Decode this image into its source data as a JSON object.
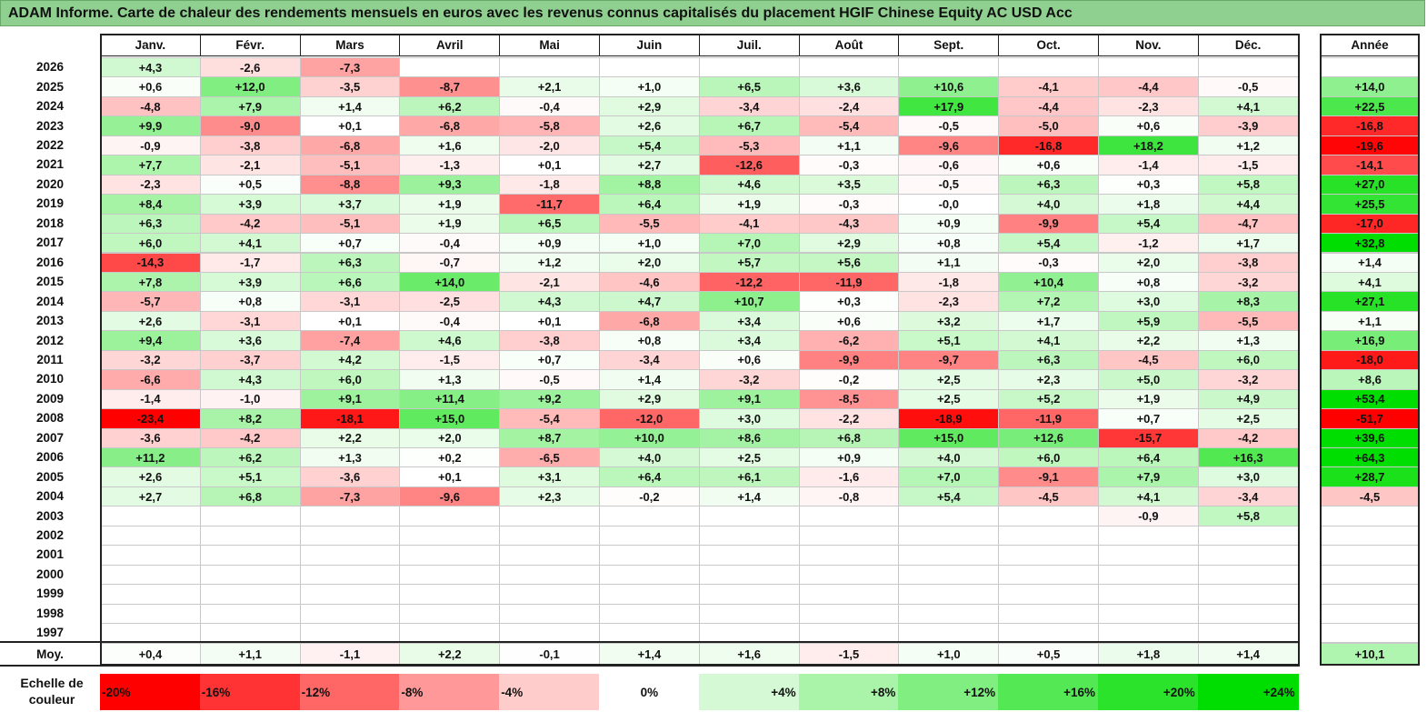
{
  "title": "ADAM Informe. Carte de chaleur des rendements mensuels en euros avec les revenus connus capitalisés du placement HGIF Chinese Equity AC USD Acc",
  "chart_data": {
    "type": "heatmap",
    "months": [
      "Janv.",
      "Févr.",
      "Mars",
      "Avril",
      "Mai",
      "Juin",
      "Juil.",
      "Août",
      "Sept.",
      "Oct.",
      "Nov.",
      "Déc."
    ],
    "year_label": "Année",
    "average_label": "Moy.",
    "rows": [
      {
        "year": "2026",
        "months": [
          "+4,3",
          "-2,6",
          "-7,3",
          "",
          "",
          "",
          "",
          "",
          "",
          "",
          "",
          ""
        ],
        "annual": ""
      },
      {
        "year": "2025",
        "months": [
          "+0,6",
          "+12,0",
          "-3,5",
          "-8,7",
          "+2,1",
          "+1,0",
          "+6,5",
          "+3,6",
          "+10,6",
          "-4,1",
          "-4,4",
          "-0,5"
        ],
        "annual": "+14,0"
      },
      {
        "year": "2024",
        "months": [
          "-4,8",
          "+7,9",
          "+1,4",
          "+6,2",
          "-0,4",
          "+2,9",
          "-3,4",
          "-2,4",
          "+17,9",
          "-4,4",
          "-2,3",
          "+4,1"
        ],
        "annual": "+22,5"
      },
      {
        "year": "2023",
        "months": [
          "+9,9",
          "-9,0",
          "+0,1",
          "-6,8",
          "-5,8",
          "+2,6",
          "+6,7",
          "-5,4",
          "-0,5",
          "-5,0",
          "+0,6",
          "-3,9"
        ],
        "annual": "-16,8"
      },
      {
        "year": "2022",
        "months": [
          "-0,9",
          "-3,8",
          "-6,8",
          "+1,6",
          "-2,0",
          "+5,4",
          "-5,3",
          "+1,1",
          "-9,6",
          "-16,8",
          "+18,2",
          "+1,2"
        ],
        "annual": "-19,6"
      },
      {
        "year": "2021",
        "months": [
          "+7,7",
          "-2,1",
          "-5,1",
          "-1,3",
          "+0,1",
          "+2,7",
          "-12,6",
          "-0,3",
          "-0,6",
          "+0,6",
          "-1,4",
          "-1,5"
        ],
        "annual": "-14,1"
      },
      {
        "year": "2020",
        "months": [
          "-2,3",
          "+0,5",
          "-8,8",
          "+9,3",
          "-1,8",
          "+8,8",
          "+4,6",
          "+3,5",
          "-0,5",
          "+6,3",
          "+0,3",
          "+5,8"
        ],
        "annual": "+27,0"
      },
      {
        "year": "2019",
        "months": [
          "+8,4",
          "+3,9",
          "+3,7",
          "+1,9",
          "-11,7",
          "+6,4",
          "+1,9",
          "-0,3",
          "-0,0",
          "+4,0",
          "+1,8",
          "+4,4"
        ],
        "annual": "+25,5"
      },
      {
        "year": "2018",
        "months": [
          "+6,3",
          "-4,2",
          "-5,1",
          "+1,9",
          "+6,5",
          "-5,5",
          "-4,1",
          "-4,3",
          "+0,9",
          "-9,9",
          "+5,4",
          "-4,7"
        ],
        "annual": "-17,0"
      },
      {
        "year": "2017",
        "months": [
          "+6,0",
          "+4,1",
          "+0,7",
          "-0,4",
          "+0,9",
          "+1,0",
          "+7,0",
          "+2,9",
          "+0,8",
          "+5,4",
          "-1,2",
          "+1,7"
        ],
        "annual": "+32,8"
      },
      {
        "year": "2016",
        "months": [
          "-14,3",
          "-1,7",
          "+6,3",
          "-0,7",
          "+1,2",
          "+2,0",
          "+5,7",
          "+5,6",
          "+1,1",
          "-0,3",
          "+2,0",
          "-3,8"
        ],
        "annual": "+1,4"
      },
      {
        "year": "2015",
        "months": [
          "+7,8",
          "+3,9",
          "+6,6",
          "+14,0",
          "-2,1",
          "-4,6",
          "-12,2",
          "-11,9",
          "-1,8",
          "+10,4",
          "+0,8",
          "-3,2"
        ],
        "annual": "+4,1"
      },
      {
        "year": "2014",
        "months": [
          "-5,7",
          "+0,8",
          "-3,1",
          "-2,5",
          "+4,3",
          "+4,7",
          "+10,7",
          "+0,3",
          "-2,3",
          "+7,2",
          "+3,0",
          "+8,3"
        ],
        "annual": "+27,1"
      },
      {
        "year": "2013",
        "months": [
          "+2,6",
          "-3,1",
          "+0,1",
          "-0,4",
          "+0,1",
          "-6,8",
          "+3,4",
          "+0,6",
          "+3,2",
          "+1,7",
          "+5,9",
          "-5,5"
        ],
        "annual": "+1,1"
      },
      {
        "year": "2012",
        "months": [
          "+9,4",
          "+3,6",
          "-7,4",
          "+4,6",
          "-3,8",
          "+0,8",
          "+3,4",
          "-6,2",
          "+5,1",
          "+4,1",
          "+2,2",
          "+1,3"
        ],
        "annual": "+16,9"
      },
      {
        "year": "2011",
        "months": [
          "-3,2",
          "-3,7",
          "+4,2",
          "-1,5",
          "+0,7",
          "-3,4",
          "+0,6",
          "-9,9",
          "-9,7",
          "+6,3",
          "-4,5",
          "+6,0"
        ],
        "annual": "-18,0"
      },
      {
        "year": "2010",
        "months": [
          "-6,6",
          "+4,3",
          "+6,0",
          "+1,3",
          "-0,5",
          "+1,4",
          "-3,2",
          "-0,2",
          "+2,5",
          "+2,3",
          "+5,0",
          "-3,2"
        ],
        "annual": "+8,6"
      },
      {
        "year": "2009",
        "months": [
          "-1,4",
          "-1,0",
          "+9,1",
          "+11,4",
          "+9,2",
          "+2,9",
          "+9,1",
          "-8,5",
          "+2,5",
          "+5,2",
          "+1,9",
          "+4,9"
        ],
        "annual": "+53,4"
      },
      {
        "year": "2008",
        "months": [
          "-23,4",
          "+8,2",
          "-18,1",
          "+15,0",
          "-5,4",
          "-12,0",
          "+3,0",
          "-2,2",
          "-18,9",
          "-11,9",
          "+0,7",
          "+2,5"
        ],
        "annual": "-51,7"
      },
      {
        "year": "2007",
        "months": [
          "-3,6",
          "-4,2",
          "+2,2",
          "+2,0",
          "+8,7",
          "+10,0",
          "+8,6",
          "+6,8",
          "+15,0",
          "+12,6",
          "-15,7",
          "-4,2"
        ],
        "annual": "+39,6"
      },
      {
        "year": "2006",
        "months": [
          "+11,2",
          "+6,2",
          "+1,3",
          "+0,2",
          "-6,5",
          "+4,0",
          "+2,5",
          "+0,9",
          "+4,0",
          "+6,0",
          "+6,4",
          "+16,3"
        ],
        "annual": "+64,3"
      },
      {
        "year": "2005",
        "months": [
          "+2,6",
          "+5,1",
          "-3,6",
          "+0,1",
          "+3,1",
          "+6,4",
          "+6,1",
          "-1,6",
          "+7,0",
          "-9,1",
          "+7,9",
          "+3,0"
        ],
        "annual": "+28,7"
      },
      {
        "year": "2004",
        "months": [
          "+2,7",
          "+6,8",
          "-7,3",
          "-9,6",
          "+2,3",
          "-0,2",
          "+1,4",
          "-0,8",
          "+5,4",
          "-4,5",
          "+4,1",
          "-3,4"
        ],
        "annual": "-4,5"
      },
      {
        "year": "2003",
        "months": [
          "",
          "",
          "",
          "",
          "",
          "",
          "",
          "",
          "",
          "",
          "-0,9",
          "+5,8"
        ],
        "annual": ""
      },
      {
        "year": "2002",
        "months": [
          "",
          "",
          "",
          "",
          "",
          "",
          "",
          "",
          "",
          "",
          "",
          ""
        ],
        "annual": ""
      },
      {
        "year": "2001",
        "months": [
          "",
          "",
          "",
          "",
          "",
          "",
          "",
          "",
          "",
          "",
          "",
          ""
        ],
        "annual": ""
      },
      {
        "year": "2000",
        "months": [
          "",
          "",
          "",
          "",
          "",
          "",
          "",
          "",
          "",
          "",
          "",
          ""
        ],
        "annual": ""
      },
      {
        "year": "1999",
        "months": [
          "",
          "",
          "",
          "",
          "",
          "",
          "",
          "",
          "",
          "",
          "",
          ""
        ],
        "annual": ""
      },
      {
        "year": "1998",
        "months": [
          "",
          "",
          "",
          "",
          "",
          "",
          "",
          "",
          "",
          "",
          "",
          ""
        ],
        "annual": ""
      },
      {
        "year": "1997",
        "months": [
          "",
          "",
          "",
          "",
          "",
          "",
          "",
          "",
          "",
          "",
          "",
          ""
        ],
        "annual": ""
      }
    ],
    "average": {
      "months": [
        "+0,4",
        "+1,1",
        "-1,1",
        "+2,2",
        "-0,1",
        "+1,4",
        "+1,6",
        "-1,5",
        "+1,0",
        "+0,5",
        "+1,8",
        "+1,4"
      ],
      "annual": "+10,1"
    },
    "scale_label": "Echelle de couleur",
    "scale": [
      "-20%",
      "-16%",
      "-12%",
      "-8%",
      "-4%",
      "0%",
      "+4%",
      "+8%",
      "+12%",
      "+16%",
      "+20%",
      "+24%"
    ],
    "colors": {
      "neg_max": "#ff0000",
      "pos_max": "#00dd00",
      "neutral": "#ffffff",
      "title_bg": "#8fcf8f"
    }
  }
}
